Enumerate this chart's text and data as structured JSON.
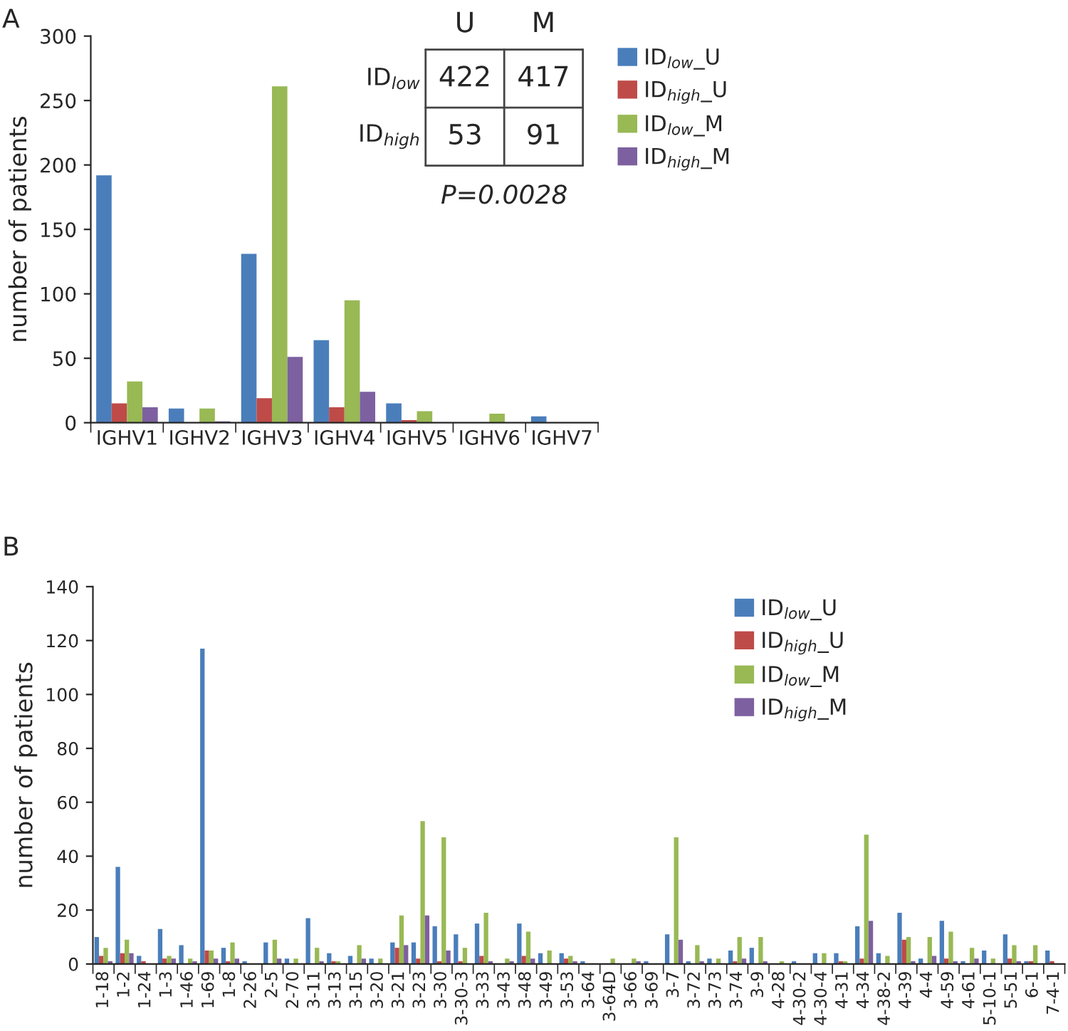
{
  "chart_data": [
    {
      "type": "bar",
      "ylabel": "number of patients",
      "categories": [
        "IGHV1",
        "IGHV2",
        "IGHV3",
        "IGHV4",
        "IGHV5",
        "IGHV6",
        "IGHV7"
      ],
      "series": [
        {
          "name": "ID$_{low}$_U",
          "color": "#4a7ebb",
          "values": [
            192,
            11,
            131,
            64,
            15,
            0,
            5
          ]
        },
        {
          "name": "ID$_{high}$_U",
          "color": "#be4b48",
          "values": [
            15,
            0,
            19,
            12,
            2,
            0,
            0
          ]
        },
        {
          "name": "ID$_{low}$_M",
          "color": "#98b954",
          "values": [
            32,
            11,
            261,
            95,
            9,
            7,
            0
          ]
        },
        {
          "name": "ID$_{high}$_M",
          "color": "#7d60a0",
          "values": [
            12,
            1,
            51,
            24,
            0,
            0,
            0
          ]
        }
      ],
      "ylim": [
        0,
        300
      ],
      "yticks": [
        0,
        50,
        100,
        150,
        200,
        250,
        300
      ],
      "grid": false,
      "legend": "top right",
      "annotations": [
        "A",
        "U",
        "M",
        "ID$_{low}$",
        "422",
        "417",
        "ID$_{high}$",
        "53",
        "91",
        "P=0.0028"
      ]
    },
    {
      "type": "bar",
      "ylabel": "number of patients",
      "categories": [
        "1-18",
        "1-2",
        "1-24",
        "1-3",
        "1-46",
        "1-69",
        "1-8",
        "2-26",
        "2-5",
        "2-70",
        "3-11",
        "3-13",
        "3-15",
        "3-20",
        "3-21",
        "3-23",
        "3-30",
        "3-30-3",
        "3-33",
        "3-43",
        "3-48",
        "3-49",
        "3-53",
        "3-64",
        "3-64D",
        "3-66",
        "3-69",
        "3-7",
        "3-72",
        "3-73",
        "3-74",
        "3-9",
        "4-28",
        "4-30-2",
        "4-30-4",
        "4-31",
        "4-34",
        "4-38-2",
        "4-39",
        "4-4",
        "4-59",
        "4-61",
        "5-10-1",
        "5-51",
        "6-1",
        "7-4-1"
      ],
      "series": [
        {
          "name": "ID$_{low}$_U",
          "color": "#4a7ebb",
          "values": [
            10,
            36,
            3,
            13,
            7,
            117,
            6,
            1,
            8,
            2,
            17,
            4,
            3,
            2,
            8,
            8,
            14,
            11,
            15,
            0,
            15,
            4,
            4,
            1,
            0,
            0,
            1,
            11,
            1,
            2,
            5,
            6,
            0,
            1,
            4,
            4,
            14,
            4,
            19,
            2,
            16,
            1,
            5,
            11,
            1,
            5
          ]
        },
        {
          "name": "ID$_{high}$_U",
          "color": "#be4b48",
          "values": [
            3,
            4,
            1,
            2,
            0,
            5,
            1,
            0,
            0,
            0,
            0,
            1,
            0,
            0,
            6,
            2,
            1,
            1,
            3,
            0,
            3,
            0,
            2,
            0,
            0,
            0,
            0,
            0,
            0,
            0,
            1,
            0,
            0,
            0,
            0,
            1,
            2,
            0,
            9,
            0,
            2,
            0,
            0,
            2,
            1,
            1
          ]
        },
        {
          "name": "ID$_{low}$_M",
          "color": "#98b954",
          "values": [
            6,
            9,
            0,
            3,
            2,
            5,
            8,
            0,
            9,
            2,
            6,
            1,
            7,
            2,
            18,
            53,
            47,
            6,
            19,
            2,
            12,
            5,
            3,
            0,
            2,
            2,
            0,
            47,
            7,
            2,
            10,
            10,
            1,
            0,
            4,
            1,
            48,
            3,
            10,
            10,
            12,
            6,
            2,
            7,
            7,
            0
          ]
        },
        {
          "name": "ID$_{high}$_M",
          "color": "#7d60a0",
          "values": [
            1,
            4,
            0,
            2,
            1,
            2,
            2,
            0,
            2,
            0,
            1,
            0,
            2,
            0,
            7,
            18,
            5,
            0,
            1,
            1,
            2,
            0,
            1,
            0,
            0,
            1,
            0,
            9,
            1,
            0,
            2,
            1,
            0,
            0,
            0,
            0,
            16,
            0,
            1,
            3,
            1,
            2,
            0,
            1,
            0,
            0
          ]
        }
      ],
      "ylim": [
        0,
        140
      ],
      "yticks": [
        0,
        20,
        40,
        60,
        80,
        100,
        120,
        140
      ],
      "grid": false,
      "legend": "top right",
      "annotations": [
        "B"
      ]
    }
  ]
}
